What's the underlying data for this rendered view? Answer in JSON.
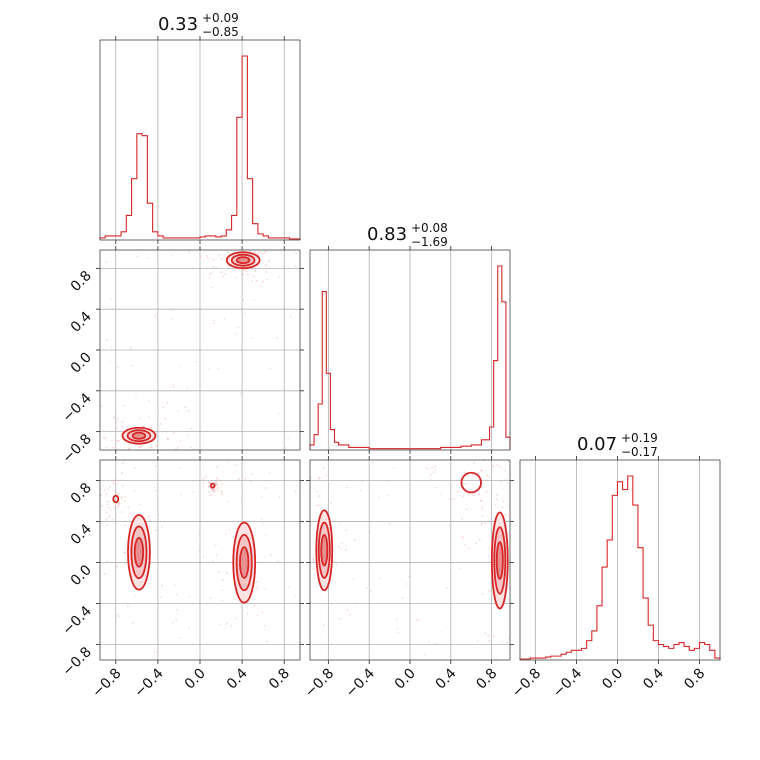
{
  "figure": {
    "type": "corner-plot",
    "color": "#d62728",
    "fill_color": "#f4c6c6",
    "point_color": "#f1b2b2"
  },
  "titles": {
    "p0": {
      "median": "0.33",
      "plus": "+0.09",
      "minus": "−0.85"
    },
    "p1": {
      "median": "0.83",
      "plus": "+0.08",
      "minus": "−1.69"
    },
    "p2": {
      "median": "0.07",
      "plus": "+0.19",
      "minus": "−0.17"
    }
  },
  "chart_data": [
    {
      "type": "histogram",
      "parameter": 0,
      "xlim": [
        -0.95,
        0.95
      ],
      "bins": [
        [
          -0.95,
          0.01
        ],
        [
          -0.9,
          0.02
        ],
        [
          -0.85,
          0.02
        ],
        [
          -0.8,
          0.02
        ],
        [
          -0.75,
          0.04
        ],
        [
          -0.7,
          0.12
        ],
        [
          -0.65,
          0.3
        ],
        [
          -0.6,
          0.52
        ],
        [
          -0.55,
          0.51
        ],
        [
          -0.5,
          0.18
        ],
        [
          -0.45,
          0.04
        ],
        [
          -0.4,
          0.02
        ],
        [
          -0.35,
          0.01
        ],
        [
          -0.3,
          0.01
        ],
        [
          -0.25,
          0.01
        ],
        [
          -0.2,
          0.01
        ],
        [
          -0.15,
          0.01
        ],
        [
          -0.1,
          0.01
        ],
        [
          -0.05,
          0.01
        ],
        [
          0.0,
          0.015
        ],
        [
          0.05,
          0.02
        ],
        [
          0.1,
          0.02
        ],
        [
          0.15,
          0.015
        ],
        [
          0.2,
          0.02
        ],
        [
          0.25,
          0.05
        ],
        [
          0.3,
          0.12
        ],
        [
          0.35,
          0.6
        ],
        [
          0.4,
          0.9
        ],
        [
          0.45,
          0.3
        ],
        [
          0.5,
          0.08
        ],
        [
          0.55,
          0.03
        ],
        [
          0.6,
          0.02
        ],
        [
          0.65,
          0.01
        ],
        [
          0.7,
          0.01
        ],
        [
          0.75,
          0.01
        ],
        [
          0.8,
          0.01
        ],
        [
          0.85,
          0.005
        ],
        [
          0.9,
          0.005
        ]
      ],
      "ticks": [
        -0.8,
        -0.4,
        0.0,
        0.4,
        0.8
      ]
    },
    {
      "type": "histogram",
      "parameter": 1,
      "xlim": [
        -0.98,
        0.98
      ],
      "bins": [
        [
          -0.98,
          0.02
        ],
        [
          -0.94,
          0.06
        ],
        [
          -0.9,
          0.18
        ],
        [
          -0.86,
          0.62
        ],
        [
          -0.82,
          0.3
        ],
        [
          -0.78,
          0.08
        ],
        [
          -0.74,
          0.03
        ],
        [
          -0.7,
          0.02
        ],
        [
          -0.6,
          0.01
        ],
        [
          -0.5,
          0.01
        ],
        [
          -0.4,
          0.005
        ],
        [
          -0.3,
          0.005
        ],
        [
          -0.2,
          0.005
        ],
        [
          -0.1,
          0.005
        ],
        [
          0.0,
          0.005
        ],
        [
          0.1,
          0.005
        ],
        [
          0.2,
          0.005
        ],
        [
          0.3,
          0.01
        ],
        [
          0.4,
          0.01
        ],
        [
          0.5,
          0.015
        ],
        [
          0.6,
          0.02
        ],
        [
          0.7,
          0.04
        ],
        [
          0.78,
          0.09
        ],
        [
          0.82,
          0.35
        ],
        [
          0.86,
          0.72
        ],
        [
          0.9,
          0.58
        ],
        [
          0.94,
          0.05
        ]
      ],
      "ticks": [
        -0.8,
        -0.4,
        0.0,
        0.4,
        0.8
      ]
    },
    {
      "type": "histogram",
      "parameter": 2,
      "xlim": [
        -0.95,
        1.0
      ],
      "bins": [
        [
          -0.95,
          0.005
        ],
        [
          -0.9,
          0.005
        ],
        [
          -0.85,
          0.01
        ],
        [
          -0.8,
          0.01
        ],
        [
          -0.75,
          0.01
        ],
        [
          -0.7,
          0.015
        ],
        [
          -0.65,
          0.02
        ],
        [
          -0.6,
          0.02
        ],
        [
          -0.55,
          0.03
        ],
        [
          -0.5,
          0.04
        ],
        [
          -0.45,
          0.05
        ],
        [
          -0.4,
          0.05
        ],
        [
          -0.35,
          0.06
        ],
        [
          -0.3,
          0.1
        ],
        [
          -0.25,
          0.15
        ],
        [
          -0.2,
          0.28
        ],
        [
          -0.15,
          0.48
        ],
        [
          -0.1,
          0.62
        ],
        [
          -0.05,
          0.85
        ],
        [
          0.0,
          0.92
        ],
        [
          0.05,
          0.88
        ],
        [
          0.1,
          0.95
        ],
        [
          0.15,
          0.8
        ],
        [
          0.2,
          0.58
        ],
        [
          0.25,
          0.32
        ],
        [
          0.3,
          0.18
        ],
        [
          0.35,
          0.1
        ],
        [
          0.4,
          0.08
        ],
        [
          0.45,
          0.07
        ],
        [
          0.5,
          0.06
        ],
        [
          0.55,
          0.08
        ],
        [
          0.6,
          0.09
        ],
        [
          0.65,
          0.07
        ],
        [
          0.7,
          0.05
        ],
        [
          0.75,
          0.06
        ],
        [
          0.8,
          0.09
        ],
        [
          0.85,
          0.08
        ],
        [
          0.9,
          0.05
        ],
        [
          0.95,
          0.01
        ]
      ],
      "ticks": [
        -0.8,
        -0.4,
        0.0,
        0.4,
        0.8
      ]
    },
    {
      "type": "scatter-contour",
      "x_parameter": 0,
      "y_parameter": 1,
      "xlim": [
        -0.95,
        0.95
      ],
      "ylim": [
        -0.98,
        0.98
      ],
      "modes": [
        {
          "x": -0.58,
          "y": -0.84,
          "sx": 0.06,
          "sy": 0.03,
          "weight": 1.0
        },
        {
          "x": 0.41,
          "y": 0.88,
          "sx": 0.06,
          "sy": 0.03,
          "weight": 1.0
        }
      ],
      "xticks": [
        -0.8,
        -0.4,
        0.0,
        0.4,
        0.8
      ],
      "yticks": [
        -0.8,
        -0.4,
        0.0,
        0.4,
        0.8
      ]
    },
    {
      "type": "scatter-contour",
      "x_parameter": 0,
      "y_parameter": 2,
      "xlim": [
        -0.95,
        0.95
      ],
      "ylim": [
        -0.95,
        1.0
      ],
      "modes": [
        {
          "x": -0.58,
          "y": 0.1,
          "sx": 0.04,
          "sy": 0.14,
          "weight": 1.0
        },
        {
          "x": 0.42,
          "y": 0.0,
          "sx": 0.04,
          "sy": 0.15,
          "weight": 1.0
        },
        {
          "x": -0.8,
          "y": 0.62,
          "sx": 0.015,
          "sy": 0.02,
          "weight": 0.3
        },
        {
          "x": 0.12,
          "y": 0.75,
          "sx": 0.01,
          "sy": 0.01,
          "weight": 0.2
        }
      ],
      "xticks": [
        -0.8,
        -0.4,
        0.0,
        0.4,
        0.8
      ],
      "yticks": [
        -0.8,
        -0.4,
        0.0,
        0.4,
        0.8
      ]
    },
    {
      "type": "scatter-contour",
      "x_parameter": 1,
      "y_parameter": 2,
      "xlim": [
        -0.98,
        0.98
      ],
      "ylim": [
        -0.95,
        1.0
      ],
      "modes": [
        {
          "x": -0.84,
          "y": 0.12,
          "sx": 0.03,
          "sy": 0.15,
          "weight": 1.0
        },
        {
          "x": 0.88,
          "y": 0.02,
          "sx": 0.03,
          "sy": 0.18,
          "weight": 1.0
        },
        {
          "x": 0.6,
          "y": 0.78,
          "sx": 0.06,
          "sy": 0.06,
          "weight": 0.3
        }
      ],
      "xticks": [
        -0.8,
        -0.4,
        0.0,
        0.4,
        0.8
      ],
      "yticks": [
        -0.8,
        -0.4,
        0.0,
        0.4,
        0.8
      ]
    }
  ],
  "tick_labels": [
    "−0.8",
    "−0.4",
    "0.0",
    "0.4",
    "0.8"
  ]
}
